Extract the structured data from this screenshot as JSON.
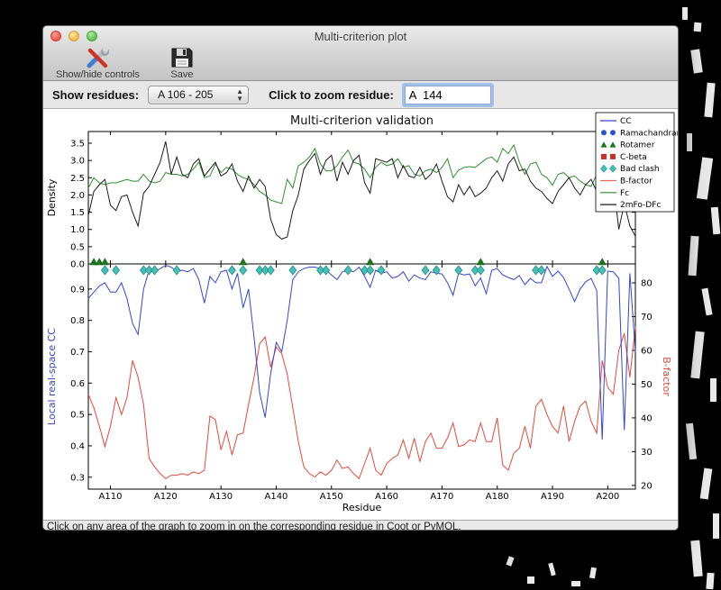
{
  "window": {
    "title": "Multi-criterion plot"
  },
  "toolbar": {
    "show_hide_label": "Show/hide controls",
    "save_label": "Save"
  },
  "controls": {
    "show_residues_label": "Show residues:",
    "show_residues_value": "A 106 - 205",
    "zoom_residue_label": "Click to zoom residue:",
    "zoom_residue_value": "A  144"
  },
  "status_bar": {
    "text": "Click on any area of the graph to zoom in on the corresponding residue in Coot or PyMOL."
  },
  "chart_data": {
    "type": "line",
    "title": "Multi-criterion validation",
    "xlabel": "Residue",
    "x_start": 106,
    "x_end": 205,
    "x_tick_values": [
      110,
      120,
      130,
      140,
      150,
      160,
      170,
      180,
      190,
      200
    ],
    "x_tick_labels": [
      "A110",
      "A120",
      "A130",
      "A140",
      "A150",
      "A160",
      "A170",
      "A180",
      "A190",
      "A200"
    ],
    "top_panel": {
      "ylabel": "Density",
      "ylim": [
        0,
        3.84
      ],
      "ytick_values": [
        0.0,
        0.5,
        1.0,
        1.5,
        2.0,
        2.5,
        3.0,
        3.5
      ],
      "ytick_labels": [
        "0.0",
        "0.5",
        "1.0",
        "1.5",
        "2.0",
        "2.5",
        "3.0",
        "3.5"
      ],
      "series": [
        {
          "name": "Fc",
          "color": "#2f8f2f",
          "values": [
            2.2,
            2.5,
            2.35,
            2.3,
            2.35,
            2.35,
            2.4,
            2.45,
            2.4,
            2.4,
            2.6,
            2.4,
            2.35,
            2.4,
            2.65,
            2.6,
            2.6,
            2.55,
            2.6,
            2.75,
            2.95,
            2.5,
            2.55,
            2.9,
            2.65,
            2.8,
            2.75,
            2.6,
            2.5,
            2.45,
            2.3,
            2.1,
            2.0,
            1.85,
            1.8,
            1.75,
            2.45,
            2.2,
            2.85,
            2.95,
            3.1,
            3.35,
            2.9,
            2.7,
            2.7,
            2.85,
            3.1,
            3.3,
            2.95,
            2.9,
            2.75,
            2.5,
            2.8,
            2.95,
            2.85,
            2.9,
            3.05,
            2.8,
            2.85,
            2.6,
            2.55,
            2.7,
            2.75,
            2.65,
            2.8,
            3.05,
            2.5,
            2.72,
            2.8,
            2.82,
            2.8,
            2.92,
            3.05,
            3.1,
            2.95,
            3.35,
            3.2,
            3.45,
            2.95,
            2.6,
            2.9,
            2.95,
            2.6,
            2.5,
            2.28,
            2.6,
            2.65,
            2.5,
            2.55,
            2.4,
            2.3,
            2.25,
            2.6,
            2.5,
            2.5,
            2.55,
            1.8,
            1.6,
            2.1,
            1.7
          ]
        },
        {
          "name": "2mFo-DFc",
          "color": "#1a1a1a",
          "values": [
            1.4,
            2.1,
            2.3,
            2.45,
            1.7,
            1.55,
            1.95,
            2.0,
            1.5,
            1.1,
            2.05,
            2.25,
            2.6,
            2.95,
            3.55,
            2.6,
            3.1,
            2.6,
            2.5,
            2.9,
            3.05,
            2.55,
            2.75,
            2.95,
            2.55,
            2.65,
            2.9,
            2.4,
            2.1,
            2.55,
            2.2,
            2.45,
            2.25,
            1.3,
            0.85,
            0.72,
            0.78,
            1.55,
            2.0,
            2.75,
            3.0,
            3.2,
            2.6,
            3.0,
            3.15,
            2.4,
            2.95,
            2.6,
            3.0,
            3.15,
            2.35,
            2.05,
            3.05,
            3.0,
            2.95,
            3.05,
            2.5,
            2.85,
            2.55,
            2.5,
            2.8,
            2.45,
            2.6,
            2.9,
            2.4,
            1.95,
            1.8,
            2.3,
            2.0,
            2.25,
            1.95,
            2.05,
            2.2,
            2.5,
            2.7,
            2.4,
            2.9,
            3.1,
            2.7,
            2.75,
            2.4,
            2.2,
            2.1,
            1.9,
            1.75,
            2.1,
            2.3,
            2.5,
            2.2,
            2.0,
            2.3,
            2.45,
            2.1,
            1.85,
            2.2,
            2.4,
            1.0,
            1.75,
            1.1,
            0.8
          ]
        }
      ]
    },
    "bottom_panel": {
      "ylabel_left": "Local real-space CC",
      "ylabel_left_color": "#3545cf",
      "ylim_left": [
        0.262,
        0.98
      ],
      "ytick_values_left": [
        0.3,
        0.4,
        0.5,
        0.6,
        0.7,
        0.8,
        0.9
      ],
      "ytick_labels_left": [
        "0.3",
        "0.4",
        "0.5",
        "0.6",
        "0.7",
        "0.8",
        "0.9"
      ],
      "ylabel_right": "B-factor",
      "ylabel_right_color": "#e2493b",
      "ylim_right": [
        18.9,
        85.6
      ],
      "ytick_values_right": [
        20,
        30,
        40,
        50,
        60,
        70,
        80
      ],
      "ytick_labels_right": [
        "20",
        "30",
        "40",
        "50",
        "60",
        "70",
        "80"
      ],
      "series": [
        {
          "name": "CC",
          "axis": "left",
          "color": "#3545cf",
          "values": [
            0.87,
            0.89,
            0.91,
            0.92,
            0.89,
            0.89,
            0.92,
            0.87,
            0.79,
            0.755,
            0.9,
            0.96,
            0.955,
            0.965,
            0.975,
            0.97,
            0.955,
            0.96,
            0.955,
            0.965,
            0.93,
            0.855,
            0.94,
            0.92,
            0.955,
            0.96,
            0.9,
            0.95,
            0.84,
            0.9,
            0.745,
            0.57,
            0.49,
            0.63,
            0.73,
            0.7,
            0.8,
            0.93,
            0.955,
            0.965,
            0.97,
            0.97,
            0.965,
            0.96,
            0.945,
            0.93,
            0.955,
            0.96,
            0.955,
            0.97,
            0.94,
            0.905,
            0.96,
            0.95,
            0.955,
            0.935,
            0.94,
            0.955,
            0.925,
            0.945,
            0.935,
            0.93,
            0.955,
            0.95,
            0.948,
            0.92,
            0.88,
            0.95,
            0.945,
            0.948,
            0.91,
            0.935,
            0.885,
            0.96,
            0.965,
            0.945,
            0.937,
            0.93,
            0.943,
            0.914,
            0.934,
            0.92,
            0.92,
            0.972,
            0.94,
            0.957,
            0.937,
            0.9,
            0.86,
            0.9,
            0.923,
            0.934,
            0.895,
            0.42,
            0.957,
            0.955,
            0.934,
            0.45,
            0.95,
            0.7
          ]
        },
        {
          "name": "B-factor",
          "axis": "right",
          "color": "#e2493b",
          "values": [
            47,
            43,
            37.5,
            31.5,
            37.5,
            46,
            41,
            46,
            57,
            52,
            44,
            28,
            25.5,
            23.5,
            22,
            23,
            23,
            23.5,
            23,
            24,
            23.5,
            24.5,
            40.5,
            39.5,
            30.5,
            36,
            29,
            35,
            35.5,
            44,
            52,
            62,
            64,
            55,
            61,
            59,
            53,
            43,
            33,
            25.5,
            23.5,
            22.5,
            24,
            23,
            24.5,
            27.5,
            25,
            25.5,
            23.5,
            22,
            26.5,
            31,
            24.5,
            23,
            26.5,
            28,
            29,
            33.5,
            28,
            34,
            27,
            33,
            35.5,
            31,
            31,
            34,
            38.5,
            31.5,
            32,
            33.5,
            33,
            38.5,
            33,
            33,
            40,
            26,
            24.5,
            29.5,
            31,
            37.5,
            31,
            43.5,
            45.5,
            41,
            37.5,
            35.5,
            43.5,
            33,
            39,
            43.5,
            45,
            39,
            35.5,
            57,
            49,
            47,
            60,
            65,
            52,
            67
          ]
        }
      ],
      "markers": {
        "rotamer": {
          "symbol": "triangle",
          "color": "#1b7a1b",
          "edge": "#145214",
          "residues": [
            107,
            108,
            109,
            134,
            157,
            177,
            199
          ]
        },
        "bad_clash": {
          "symbol": "diamond",
          "color": "#45c0b8",
          "edge": "#1f837c",
          "residues": [
            109,
            111,
            116,
            117,
            118,
            122,
            132,
            134,
            137,
            138,
            139,
            143,
            148,
            149,
            153,
            156,
            157,
            159,
            167,
            169,
            173,
            176,
            177,
            187,
            188,
            198,
            199
          ]
        }
      }
    },
    "legend": [
      {
        "label": "CC",
        "swatch": "line",
        "color": "#3545cf"
      },
      {
        "label": "Ramachandran",
        "swatch": "circles",
        "color": "#2a52cc"
      },
      {
        "label": "Rotamer",
        "swatch": "triangles",
        "color": "#1b7a1b"
      },
      {
        "label": "C-beta",
        "swatch": "squares",
        "color": "#cc3025"
      },
      {
        "label": "Bad clash",
        "swatch": "diamonds",
        "color": "#45c0b8"
      },
      {
        "label": "B-factor",
        "swatch": "line",
        "color": "#ef6a55"
      },
      {
        "label": "Fc",
        "swatch": "line",
        "color": "#2f8f2f"
      },
      {
        "label": "2mFo-DFc",
        "swatch": "line",
        "color": "#1a1a1a"
      }
    ]
  }
}
